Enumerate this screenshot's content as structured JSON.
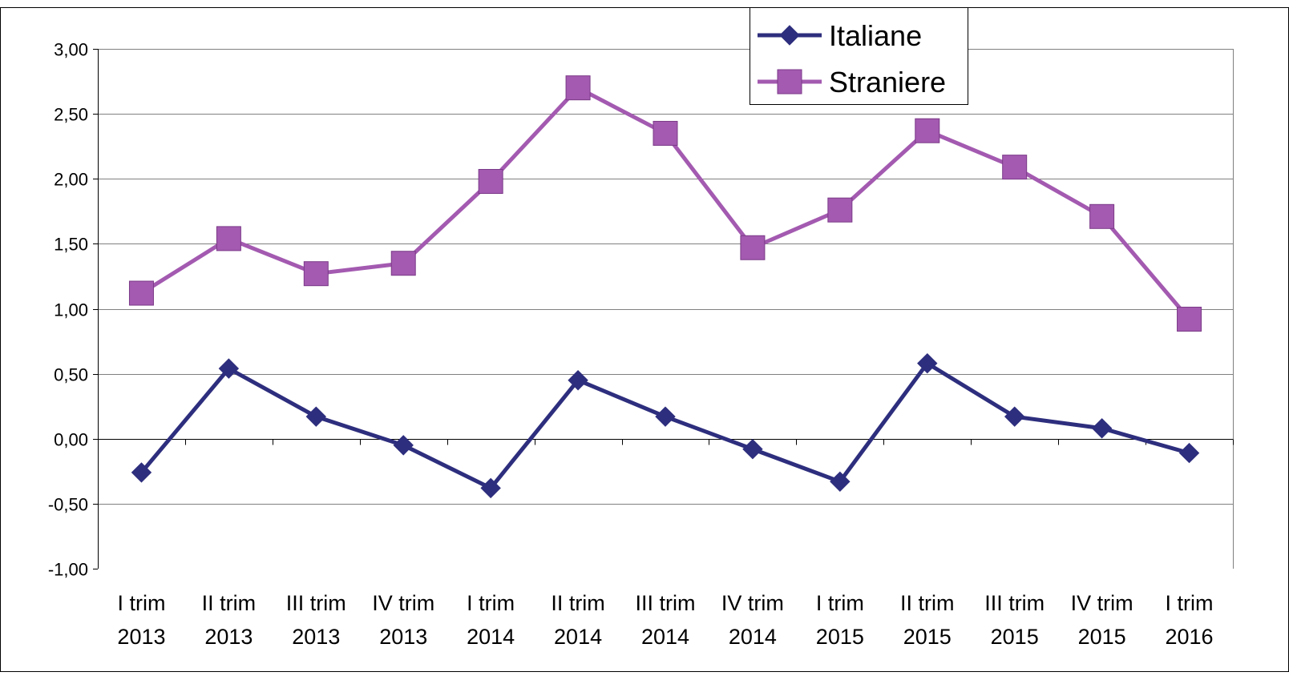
{
  "chart_data": {
    "type": "line",
    "title": "",
    "xlabel": "",
    "ylabel": "",
    "ylim": [
      -1.0,
      3.0
    ],
    "ytick_step": 0.5,
    "ytick_labels": [
      "-1,00",
      "-0,50",
      "0,00",
      "0,50",
      "1,00",
      "1,50",
      "2,00",
      "2,50",
      "3,00"
    ],
    "grid": true,
    "legend_position": "top-right",
    "categories": [
      [
        "I trim",
        "2013"
      ],
      [
        "II trim",
        "2013"
      ],
      [
        "III trim",
        "2013"
      ],
      [
        "IV trim",
        "2013"
      ],
      [
        "I trim",
        "2014"
      ],
      [
        "II trim",
        "2014"
      ],
      [
        "III trim",
        "2014"
      ],
      [
        "IV trim",
        "2014"
      ],
      [
        "I trim",
        "2015"
      ],
      [
        "II trim",
        "2015"
      ],
      [
        "III trim",
        "2015"
      ],
      [
        "IV trim",
        "2015"
      ],
      [
        "I trim",
        "2016"
      ]
    ],
    "series": [
      {
        "name": "Italiane",
        "color": "#2e2e7e",
        "marker": "diamond",
        "values": [
          -0.26,
          0.54,
          0.17,
          -0.05,
          -0.38,
          0.45,
          0.17,
          -0.08,
          -0.33,
          0.58,
          0.17,
          0.08,
          -0.11
        ]
      },
      {
        "name": "Straniere",
        "color": "#a35ab0",
        "marker": "square",
        "values": [
          1.12,
          1.54,
          1.27,
          1.35,
          1.98,
          2.7,
          2.35,
          1.47,
          1.76,
          2.37,
          2.09,
          1.71,
          0.92
        ]
      }
    ]
  }
}
